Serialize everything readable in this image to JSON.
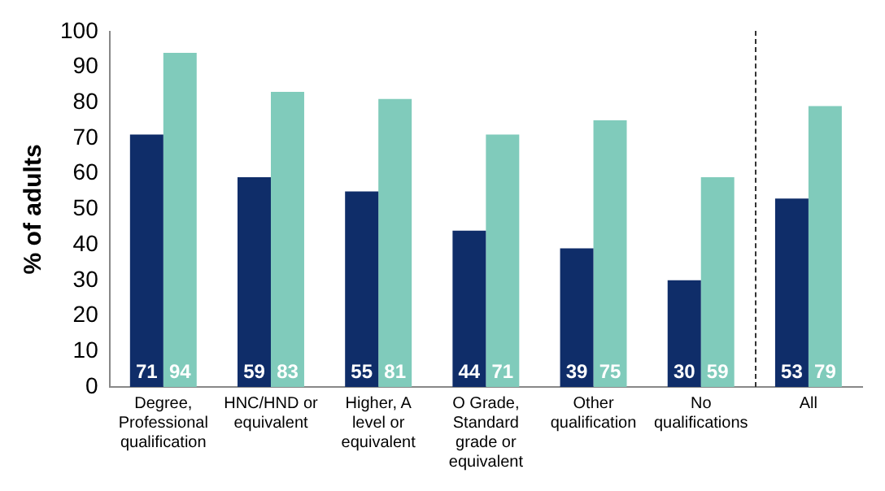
{
  "chart_data": {
    "type": "bar",
    "ylabel": "% of adults",
    "categories": [
      "Degree, Professional qualification",
      "HNC/HND or equivalent",
      "Higher, A level or equivalent",
      "O Grade, Standard grade or equivalent",
      "Other qualification",
      "No qualifications",
      "All"
    ],
    "series": [
      {
        "color": "#0f2d69",
        "values": [
          71,
          59,
          55,
          44,
          39,
          30,
          53
        ]
      },
      {
        "color": "#80cbbb",
        "values": [
          94,
          83,
          81,
          71,
          75,
          59,
          79
        ]
      }
    ],
    "ylim": [
      0,
      100
    ],
    "yticks": [
      0,
      10,
      20,
      30,
      40,
      50,
      60,
      70,
      80,
      90,
      100
    ],
    "grid": false,
    "legend": false,
    "data_labels": true
  }
}
